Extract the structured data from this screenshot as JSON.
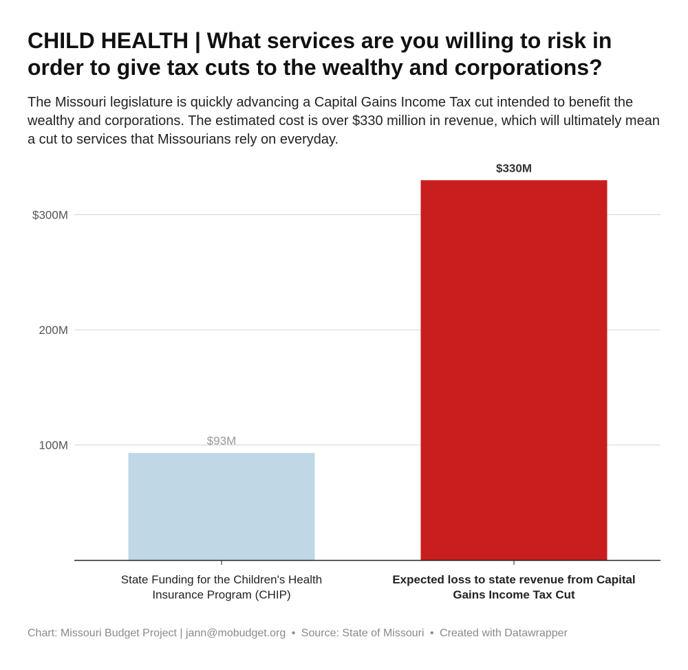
{
  "header": {
    "title": "CHILD HEALTH | What services are you willing to risk in order to give tax cuts to the wealthy and corporations?",
    "subtitle": "The Missouri legislature is quickly advancing a Capital Gains Income Tax cut intended to benefit the wealthy and corporations. The estimated cost is over $330 million in revenue, which will ultimately mean a cut to services that Missourians rely on everyday."
  },
  "chart_data": {
    "type": "bar",
    "title": "CHILD HEALTH | What services are you willing to risk in order to give tax cuts to the wealthy and corporations?",
    "xlabel": "",
    "ylabel": "",
    "ylim": [
      0,
      330
    ],
    "grid": true,
    "yticks": [
      100,
      200,
      300
    ],
    "ytick_labels": [
      "100M",
      "200M",
      "$300M"
    ],
    "bars": [
      {
        "label_lines": [
          "State Funding for the Children's Health",
          "Insurance Program (CHIP)"
        ],
        "value": 93,
        "value_label": "$93M",
        "color": "#c0d7e6",
        "value_label_color": "#999999",
        "bold": false
      },
      {
        "label_lines": [
          "Expected loss to state revenue from Capital",
          "Gains Income Tax Cut"
        ],
        "value": 330,
        "value_label": "$330M",
        "color": "#c81e1e",
        "value_label_color": "#333333",
        "bold": true
      }
    ]
  },
  "footer": {
    "chart_credit": "Chart: Missouri Budget Project | jann@mobudget.org",
    "separator": "•",
    "source": "Source: State of Missouri",
    "created_with": "Created with Datawrapper"
  }
}
